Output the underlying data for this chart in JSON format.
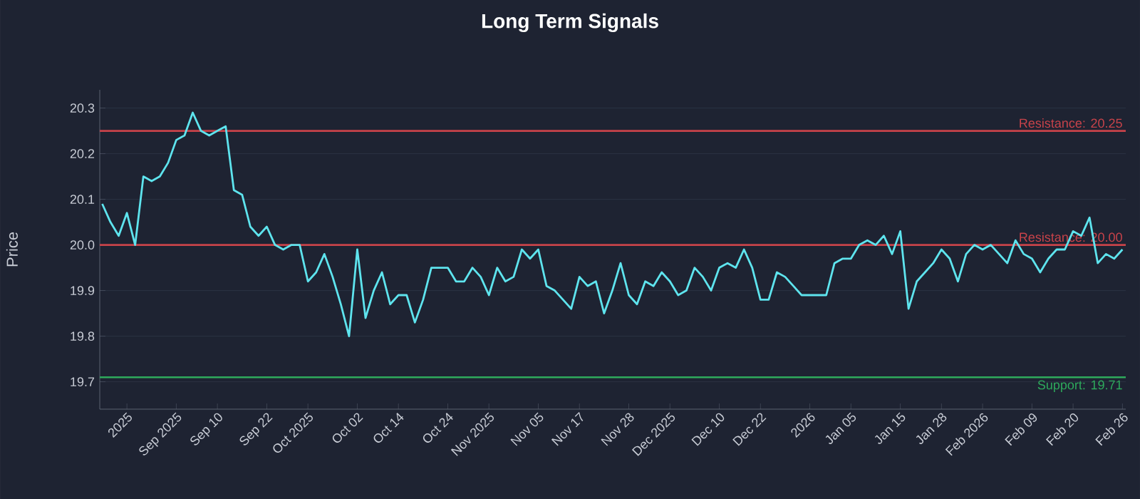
{
  "chart_data": {
    "type": "line",
    "title": "Long Term Signals",
    "ylabel": "Price",
    "categories": [
      null,
      null,
      null,
      "2025",
      null,
      null,
      null,
      null,
      null,
      "Sep 2025",
      null,
      null,
      null,
      null,
      "Sep 10",
      null,
      null,
      null,
      null,
      null,
      "Sep 22",
      null,
      null,
      null,
      null,
      "Oct 2025",
      null,
      null,
      null,
      null,
      null,
      "Oct 02",
      null,
      null,
      null,
      null,
      "Oct 14",
      null,
      null,
      null,
      null,
      null,
      "Oct 24",
      null,
      null,
      null,
      null,
      "Nov 2025",
      null,
      null,
      null,
      null,
      null,
      "Nov 05",
      null,
      null,
      null,
      null,
      "Nov 17",
      null,
      null,
      null,
      null,
      null,
      "Nov 28",
      null,
      null,
      null,
      null,
      "Dec 2025",
      null,
      null,
      null,
      null,
      null,
      "Dec 10",
      null,
      null,
      null,
      null,
      "Dec 22",
      null,
      null,
      null,
      null,
      null,
      "2026",
      null,
      null,
      null,
      null,
      "Jan 05",
      null,
      null,
      null,
      null,
      null,
      "Jan 15",
      null,
      null,
      null,
      null,
      "Jan 28",
      null,
      null,
      null,
      null,
      "Feb 2026",
      null,
      null,
      null,
      null,
      null,
      "Feb 09",
      null,
      null,
      null,
      null,
      "Feb 20",
      null,
      null,
      null,
      null,
      null,
      "Feb 26"
    ],
    "series": [
      {
        "color": "#5ee4ee",
        "values": [
          20.09,
          20.05,
          20.02,
          20.07,
          20.0,
          20.15,
          20.14,
          20.15,
          20.18,
          20.23,
          20.24,
          20.29,
          20.25,
          20.24,
          20.25,
          20.26,
          20.12,
          20.11,
          20.04,
          20.02,
          20.04,
          20.0,
          19.99,
          20.0,
          20.0,
          19.92,
          19.94,
          19.98,
          19.93,
          19.87,
          19.8,
          19.99,
          19.84,
          19.9,
          19.94,
          19.87,
          19.89,
          19.89,
          19.83,
          19.88,
          19.95,
          19.95,
          19.95,
          19.92,
          19.92,
          19.95,
          19.93,
          19.89,
          19.95,
          19.92,
          19.93,
          19.99,
          19.97,
          19.99,
          19.91,
          19.9,
          19.88,
          19.86,
          19.93,
          19.91,
          19.92,
          19.85,
          19.9,
          19.96,
          19.89,
          19.87,
          19.92,
          19.91,
          19.94,
          19.92,
          19.89,
          19.9,
          19.95,
          19.93,
          19.9,
          19.95,
          19.96,
          19.95,
          19.99,
          19.95,
          19.88,
          19.88,
          19.94,
          19.93,
          19.91,
          19.89,
          19.89,
          19.89,
          19.89,
          19.96,
          19.97,
          19.97,
          20.0,
          20.01,
          20.0,
          20.02,
          19.98,
          20.03,
          19.86,
          19.92,
          19.94,
          19.96,
          19.99,
          19.97,
          19.92,
          19.98,
          20.0,
          19.99,
          20.0,
          19.98,
          19.96,
          20.01,
          19.98,
          19.97,
          19.94,
          19.97,
          19.99,
          19.99,
          20.03,
          20.02,
          20.06,
          19.96,
          19.98,
          19.97,
          19.99
        ]
      }
    ],
    "ylim": [
      19.64,
      20.34
    ],
    "yticks": [
      {
        "value": 19.7,
        "label": "19.7"
      },
      {
        "value": 19.8,
        "label": "19.8"
      },
      {
        "value": 19.9,
        "label": "19.9"
      },
      {
        "value": 20.0,
        "label": "20.0"
      },
      {
        "value": 20.1,
        "label": "20.1"
      },
      {
        "value": 20.2,
        "label": "20.2"
      },
      {
        "value": 20.3,
        "label": "20.3"
      }
    ],
    "grid": "y",
    "ref_lines": [
      {
        "axis": "y",
        "value": 20.25,
        "label": "Resistance: 20.25",
        "color": "#c8434a"
      },
      {
        "axis": "y",
        "value": 20.0,
        "label": "Resistance: 20.00",
        "color": "#c8434a"
      },
      {
        "axis": "y",
        "value": 19.71,
        "label": "Support: 19.71",
        "color": "#2eaa5c"
      }
    ]
  }
}
